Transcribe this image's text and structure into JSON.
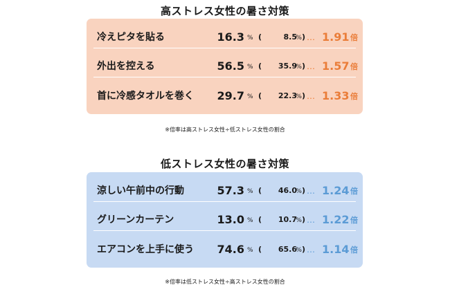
{
  "colors": {
    "high_panel_bg": "#f9d3bf",
    "high_accent": "#ea7d39",
    "low_panel_bg": "#c7daf3",
    "low_accent": "#5b9bd5",
    "divider": "#ffffff",
    "text": "#1a1a1a"
  },
  "high_stress": {
    "title": "高ストレス女性の暑さ対策",
    "rows": [
      {
        "label": "冷えピタを貼る",
        "rate": "16.3",
        "unit": "%",
        "paren_open": "(",
        "compare": "8.5",
        "compare_unit": "%",
        "paren_close": ")",
        "dots": "…",
        "ratio": "1.91",
        "ratio_unit": "倍"
      },
      {
        "label": "外出を控える",
        "rate": "56.5",
        "unit": "%",
        "paren_open": "(",
        "compare": "35.9",
        "compare_unit": "%",
        "paren_close": ")",
        "dots": "…",
        "ratio": "1.57",
        "ratio_unit": "倍"
      },
      {
        "label": "首に冷感タオルを巻く",
        "rate": "29.7",
        "unit": "%",
        "paren_open": "(",
        "compare": "22.3",
        "compare_unit": "%",
        "paren_close": ")",
        "dots": "…",
        "ratio": "1.33",
        "ratio_unit": "倍"
      }
    ],
    "note": "※倍率は高ストレス女性÷低ストレス女性の割合"
  },
  "low_stress": {
    "title": "低ストレス女性の暑さ対策",
    "rows": [
      {
        "label": "涼しい午前中の行動",
        "rate": "57.3",
        "unit": "%",
        "paren_open": "(",
        "compare": "46.0",
        "compare_unit": "%",
        "paren_close": ")",
        "dots": "…",
        "ratio": "1.24",
        "ratio_unit": "倍"
      },
      {
        "label": "グリーンカーテン",
        "rate": "13.0",
        "unit": "%",
        "paren_open": "(",
        "compare": "10.7",
        "compare_unit": "%",
        "paren_close": ")",
        "dots": "…",
        "ratio": "1.22",
        "ratio_unit": "倍"
      },
      {
        "label": "エアコンを上手に使う",
        "rate": "74.6",
        "unit": "%",
        "paren_open": "(",
        "compare": "65.6",
        "compare_unit": "%",
        "paren_close": ")",
        "dots": "…",
        "ratio": "1.14",
        "ratio_unit": "倍"
      }
    ],
    "note": "※倍率は低ストレス女性÷高ストレス女性の割合"
  }
}
